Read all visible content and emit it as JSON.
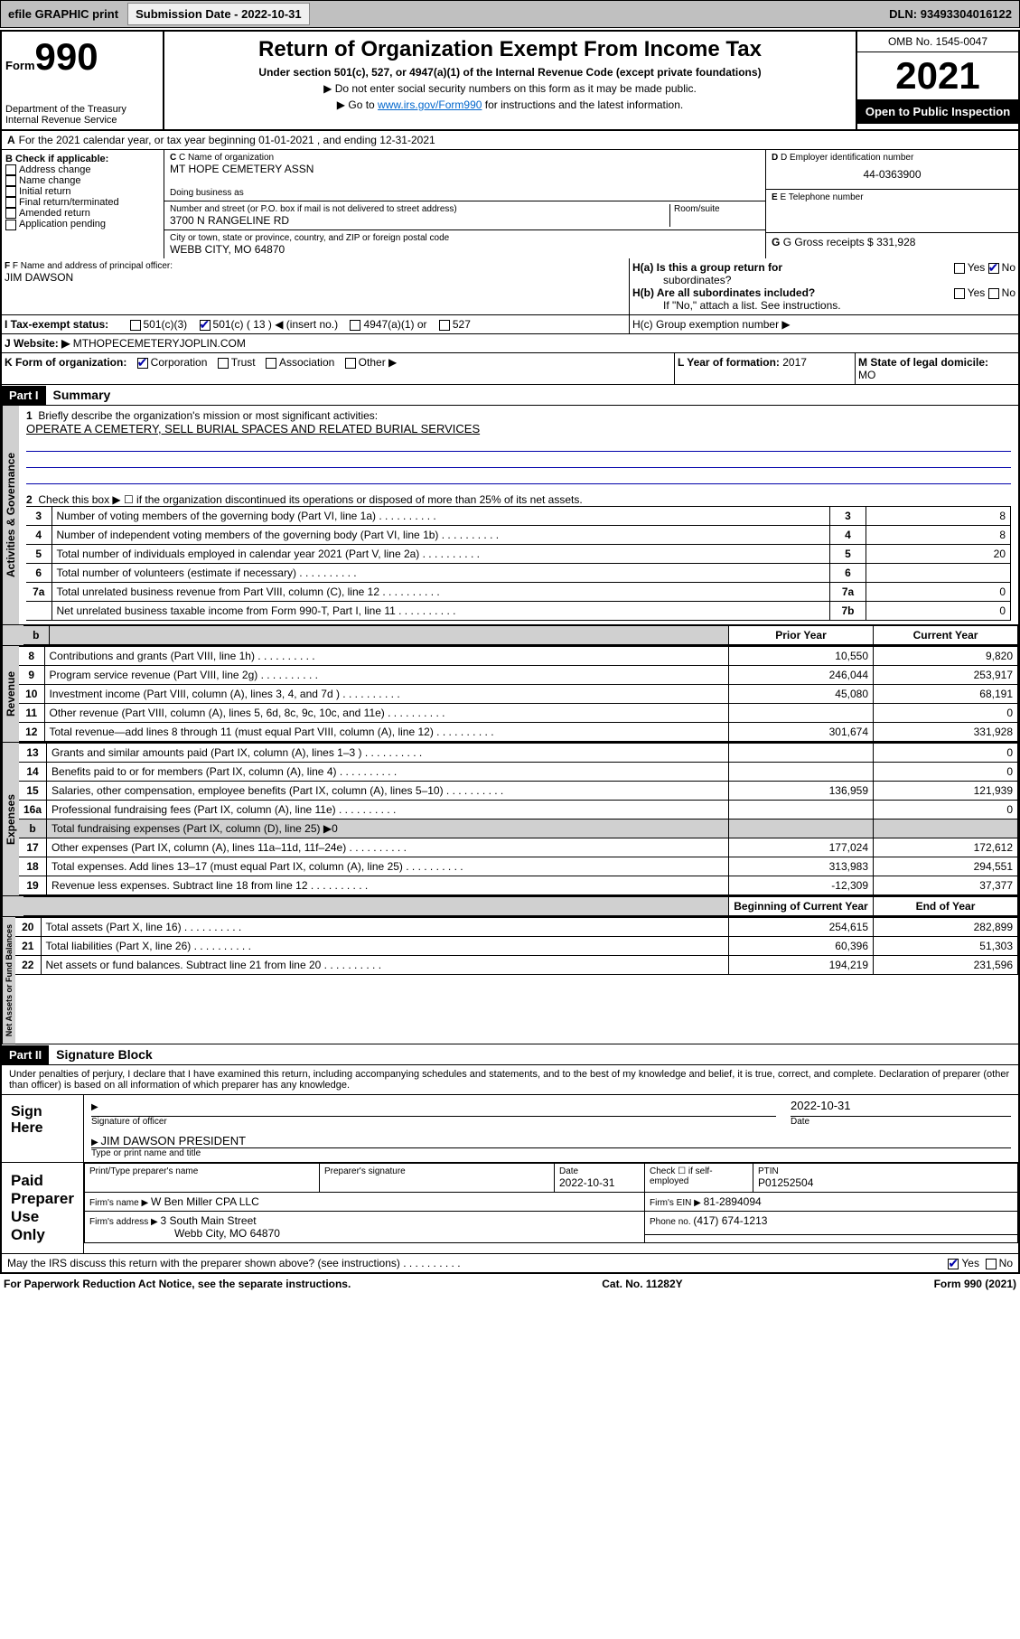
{
  "topbar": {
    "efile": "efile GRAPHIC print",
    "subdate_label": "Submission Date - ",
    "subdate": "2022-10-31",
    "dln_label": "DLN: ",
    "dln": "93493304016122"
  },
  "header": {
    "form_label": "Form",
    "form_num": "990",
    "title": "Return of Organization Exempt From Income Tax",
    "sub": "Under section 501(c), 527, or 4947(a)(1) of the Internal Revenue Code (except private foundations)",
    "note1": "▶ Do not enter social security numbers on this form as it may be made public.",
    "note2_pre": "▶ Go to ",
    "note2_link": "www.irs.gov/Form990",
    "note2_post": " for instructions and the latest information.",
    "dept": "Department of the Treasury",
    "irs": "Internal Revenue Service",
    "omb": "OMB No. 1545-0047",
    "year": "2021",
    "open": "Open to Public Inspection"
  },
  "lineA": {
    "text": "For the 2021 calendar year, or tax year beginning 01-01-2021   , and ending 12-31-2021"
  },
  "sectionB": {
    "b_label": "B Check if applicable:",
    "checks": [
      "Address change",
      "Name change",
      "Initial return",
      "Final return/terminated",
      "Amended return",
      "Application pending"
    ],
    "c_label": "C Name of organization",
    "org_name": "MT HOPE CEMETERY ASSN",
    "dba_label": "Doing business as",
    "addr_label": "Number and street (or P.O. box if mail is not delivered to street address)",
    "room_label": "Room/suite",
    "addr": "3700 N RANGELINE RD",
    "city_label": "City or town, state or province, country, and ZIP or foreign postal code",
    "city": "WEBB CITY, MO  64870",
    "d_label": "D Employer identification number",
    "ein": "44-0363900",
    "e_label": "E Telephone number",
    "g_label": "G Gross receipts $ ",
    "g_val": "331,928"
  },
  "sectionF": {
    "f_label": "F Name and address of principal officer:",
    "officer": "JIM DAWSON",
    "ha_label": "H(a)  Is this a group return for",
    "ha_sub": "subordinates?",
    "ha_yes": "Yes",
    "ha_no": "No",
    "hb_label": "H(b)  Are all subordinates included?",
    "hb_yes": "Yes",
    "hb_no": "No",
    "hb_note": "If \"No,\" attach a list. See instructions.",
    "hc_label": "H(c)  Group exemption number ▶"
  },
  "lineI": {
    "label": "I    Tax-exempt status:",
    "opt1": "501(c)(3)",
    "opt2": "501(c) ( 13 ) ◀ (insert no.)",
    "opt3": "4947(a)(1) or",
    "opt4": "527"
  },
  "lineJ": {
    "label": "J    Website: ▶",
    "val": " MTHOPECEMETERYJOPLIN.COM"
  },
  "lineK": {
    "label": "K Form of organization:",
    "opts": [
      "Corporation",
      "Trust",
      "Association",
      "Other ▶"
    ]
  },
  "lineL": {
    "label": "L Year of formation: ",
    "val": "2017"
  },
  "lineM": {
    "label": "M State of legal domicile:",
    "val": "MO"
  },
  "part1": {
    "hdr": "Part I",
    "title": "Summary"
  },
  "summary": {
    "l1": "Briefly describe the organization's mission or most significant activities:",
    "mission": "OPERATE A CEMETERY, SELL BURIAL SPACES AND RELATED BURIAL SERVICES",
    "l2": "Check this box ▶ ☐  if the organization discontinued its operations or disposed of more than 25% of its net assets.",
    "rows_gov": [
      {
        "n": "3",
        "d": "Number of voting members of the governing body (Part VI, line 1a)",
        "box": "3",
        "v": "8"
      },
      {
        "n": "4",
        "d": "Number of independent voting members of the governing body (Part VI, line 1b)",
        "box": "4",
        "v": "8"
      },
      {
        "n": "5",
        "d": "Total number of individuals employed in calendar year 2021 (Part V, line 2a)",
        "box": "5",
        "v": "20"
      },
      {
        "n": "6",
        "d": "Total number of volunteers (estimate if necessary)",
        "box": "6",
        "v": ""
      },
      {
        "n": "7a",
        "d": "Total unrelated business revenue from Part VIII, column (C), line 12",
        "box": "7a",
        "v": "0"
      },
      {
        "n": "",
        "d": "Net unrelated business taxable income from Form 990-T, Part I, line 11",
        "box": "7b",
        "v": "0"
      }
    ],
    "col_prior": "Prior Year",
    "col_current": "Current Year",
    "rev": [
      {
        "n": "8",
        "d": "Contributions and grants (Part VIII, line 1h)",
        "p": "10,550",
        "c": "9,820"
      },
      {
        "n": "9",
        "d": "Program service revenue (Part VIII, line 2g)",
        "p": "246,044",
        "c": "253,917"
      },
      {
        "n": "10",
        "d": "Investment income (Part VIII, column (A), lines 3, 4, and 7d )",
        "p": "45,080",
        "c": "68,191"
      },
      {
        "n": "11",
        "d": "Other revenue (Part VIII, column (A), lines 5, 6d, 8c, 9c, 10c, and 11e)",
        "p": "",
        "c": "0"
      },
      {
        "n": "12",
        "d": "Total revenue—add lines 8 through 11 (must equal Part VIII, column (A), line 12)",
        "p": "301,674",
        "c": "331,928"
      }
    ],
    "exp": [
      {
        "n": "13",
        "d": "Grants and similar amounts paid (Part IX, column (A), lines 1–3 )",
        "p": "",
        "c": "0"
      },
      {
        "n": "14",
        "d": "Benefits paid to or for members (Part IX, column (A), line 4)",
        "p": "",
        "c": "0"
      },
      {
        "n": "15",
        "d": "Salaries, other compensation, employee benefits (Part IX, column (A), lines 5–10)",
        "p": "136,959",
        "c": "121,939"
      },
      {
        "n": "16a",
        "d": "Professional fundraising fees (Part IX, column (A), line 11e)",
        "p": "",
        "c": "0"
      },
      {
        "n": "b",
        "d": "Total fundraising expenses (Part IX, column (D), line 25) ▶0",
        "p": "",
        "c": "",
        "shade": true
      },
      {
        "n": "17",
        "d": "Other expenses (Part IX, column (A), lines 11a–11d, 11f–24e)",
        "p": "177,024",
        "c": "172,612"
      },
      {
        "n": "18",
        "d": "Total expenses. Add lines 13–17 (must equal Part IX, column (A), line 25)",
        "p": "313,983",
        "c": "294,551"
      },
      {
        "n": "19",
        "d": "Revenue less expenses. Subtract line 18 from line 12",
        "p": "-12,309",
        "c": "37,377"
      }
    ],
    "col_beg": "Beginning of Current Year",
    "col_end": "End of Year",
    "net": [
      {
        "n": "20",
        "d": "Total assets (Part X, line 16)",
        "p": "254,615",
        "c": "282,899"
      },
      {
        "n": "21",
        "d": "Total liabilities (Part X, line 26)",
        "p": "60,396",
        "c": "51,303"
      },
      {
        "n": "22",
        "d": "Net assets or fund balances. Subtract line 21 from line 20",
        "p": "194,219",
        "c": "231,596"
      }
    ]
  },
  "vtabs": {
    "gov": "Activities & Governance",
    "rev": "Revenue",
    "exp": "Expenses",
    "net": "Net Assets or Fund Balances"
  },
  "part2": {
    "hdr": "Part II",
    "title": "Signature Block",
    "decl": "Under penalties of perjury, I declare that I have examined this return, including accompanying schedules and statements, and to the best of my knowledge and belief, it is true, correct, and complete. Declaration of preparer (other than officer) is based on all information of which preparer has any knowledge."
  },
  "sign": {
    "here": "Sign Here",
    "sig_label": "Signature of officer",
    "date_label": "Date",
    "date": "2022-10-31",
    "name": "JIM DAWSON  PRESIDENT",
    "name_label": "Type or print name and title",
    "paid": "Paid Preparer Use Only",
    "col_name": "Print/Type preparer's name",
    "col_sig": "Preparer's signature",
    "col_date": "Date",
    "pdate": "2022-10-31",
    "check_label": "Check ☐ if self-employed",
    "ptin_label": "PTIN",
    "ptin": "P01252504",
    "firm_name_label": "Firm's name    ▶ ",
    "firm_name": "W Ben Miller CPA LLC",
    "firm_ein_label": "Firm's EIN ▶ ",
    "firm_ein": "81-2894094",
    "firm_addr_label": "Firm's address ▶ ",
    "firm_addr1": "3 South Main Street",
    "firm_addr2": "Webb City, MO  64870",
    "phone_label": "Phone no. ",
    "phone": "(417) 674-1213",
    "discuss": "May the IRS discuss this return with the preparer shown above? (see instructions)",
    "d_yes": "Yes",
    "d_no": "No"
  },
  "footer": {
    "l": "For Paperwork Reduction Act Notice, see the separate instructions.",
    "m": "Cat. No. 11282Y",
    "r": "Form 990 (2021)"
  }
}
